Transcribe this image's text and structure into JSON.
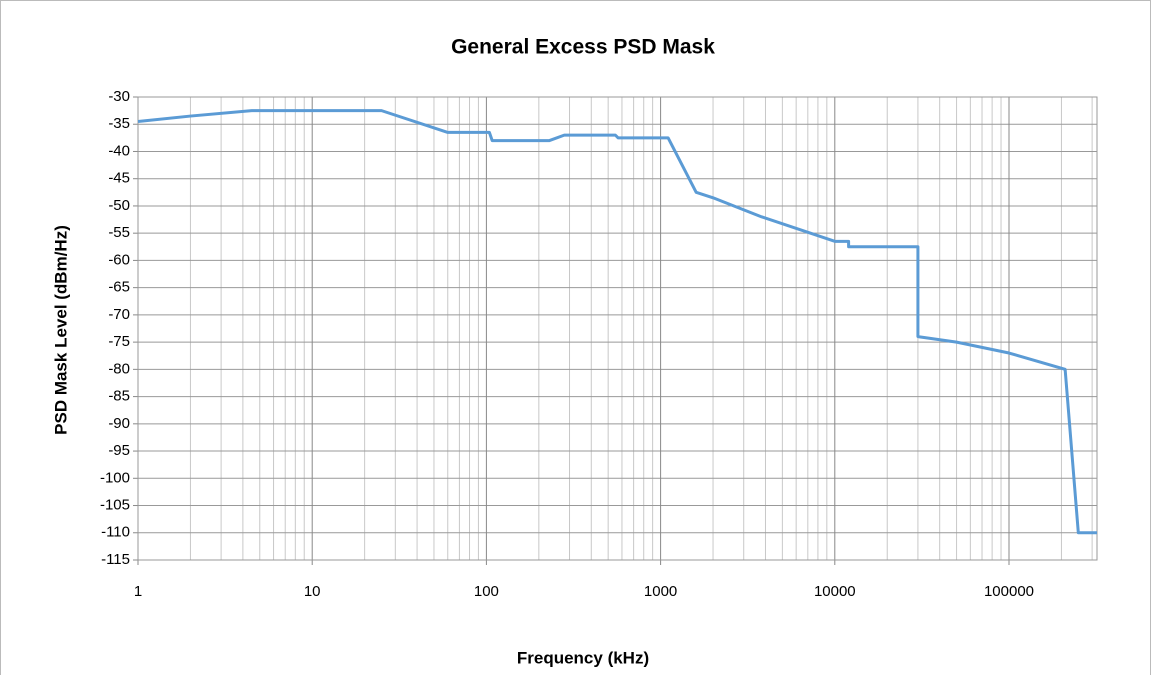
{
  "chart_data": {
    "type": "line",
    "title": "General Excess PSD Mask",
    "x_label": "Frequency (kHz)",
    "y_label": "PSD Mask Level (dBm/Hz)",
    "x": [
      1,
      2,
      4.5,
      25,
      60,
      104,
      108,
      230,
      280,
      550,
      570,
      1104,
      1600,
      2000,
      3800,
      10000,
      12000,
      12000,
      30000,
      30000,
      50000,
      100000,
      210000,
      250000,
      320000
    ],
    "values": [
      -34.5,
      -33.5,
      -32.5,
      -32.5,
      -36.5,
      -36.5,
      -38,
      -38,
      -37,
      -37,
      -37.5,
      -37.5,
      -47.5,
      -48.5,
      -52,
      -56.5,
      -56.5,
      -57.5,
      -57.5,
      -74,
      -75,
      -77,
      -80,
      -110,
      -110
    ],
    "color": "#5b9bd5",
    "xlog": true,
    "xlim": [
      1,
      320000
    ],
    "xticks": [
      1,
      10,
      100,
      1000,
      10000,
      100000
    ],
    "ylim": [
      -115,
      -30
    ],
    "yticks": [
      -30,
      -35,
      -40,
      -45,
      -50,
      -55,
      -60,
      -65,
      -70,
      -75,
      -80,
      -85,
      -90,
      -95,
      -100,
      -105,
      -110,
      -115
    ],
    "grid": true,
    "minor_grid": true
  }
}
